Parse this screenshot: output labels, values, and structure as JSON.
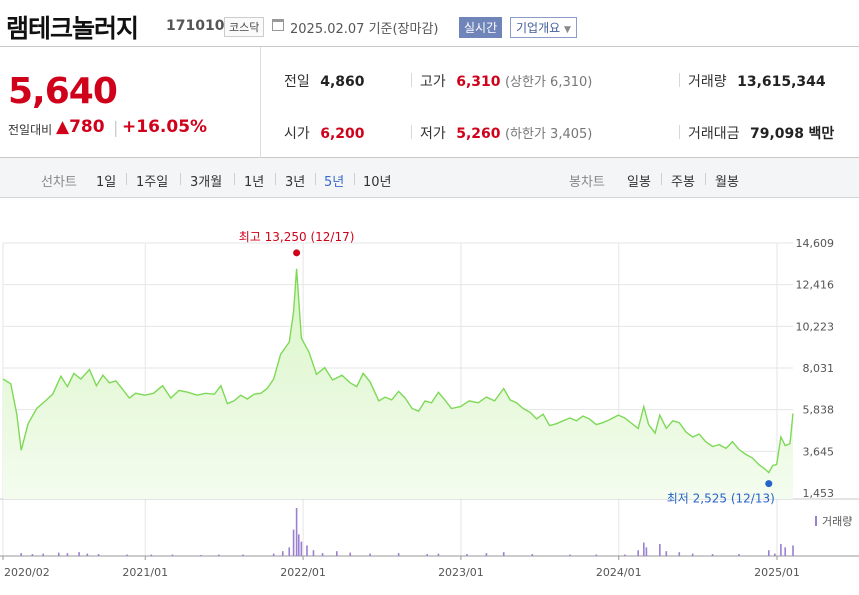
{
  "header": {
    "name": "램테크놀러지",
    "code": "171010",
    "market": "코스닥",
    "as_of": "2025.02.07 기준(장마감)",
    "realtime": "실시간",
    "company_info": "기업개요"
  },
  "quote": {
    "price": "5,640",
    "change_label": "전일대비",
    "change_abs": "▲780",
    "change_pct": "+16.05%",
    "prev_close": {
      "label": "전일",
      "value": "4,860"
    },
    "open": {
      "label": "시가",
      "value": "6,200"
    },
    "high": {
      "label": "고가",
      "value": "6,310",
      "sub": "(상한가 6,310)"
    },
    "low": {
      "label": "저가",
      "value": "5,260",
      "sub": "(하한가 3,405)"
    },
    "volume": {
      "label": "거래량",
      "value": "13,615,344"
    },
    "amount": {
      "label": "거래대금",
      "value": "79,098",
      "unit": "백만"
    }
  },
  "tabs": {
    "line_label": "선차트",
    "line": [
      {
        "label": "1일"
      },
      {
        "label": "1주일"
      },
      {
        "label": "3개월"
      },
      {
        "label": "1년"
      },
      {
        "label": "3년"
      },
      {
        "label": "5년",
        "active": true
      },
      {
        "label": "10년"
      }
    ],
    "candle_label": "봉차트",
    "candle": [
      {
        "label": "일봉"
      },
      {
        "label": "주봉"
      },
      {
        "label": "월봉"
      }
    ]
  },
  "chart_data": {
    "type": "area",
    "y_ticks": [
      "14,609",
      "12,416",
      "10,223",
      "8,031",
      "5,838",
      "3,645",
      "1,453"
    ],
    "ylim": [
      1453,
      14609
    ],
    "x_ticks": [
      "2020/02",
      "2021/01",
      "2022/01",
      "2023/01",
      "2024/01",
      "2025/01"
    ],
    "x_tick_dates": [
      "2020-02-07",
      "2021-01-01",
      "2022-01-01",
      "2023-01-01",
      "2024-01-01",
      "2025-01-01"
    ],
    "xlim": [
      "2020-02-07",
      "2025-02-07"
    ],
    "high_annotation": "최고 13,250 (12/17)",
    "low_annotation": "최저 2,525 (12/13)",
    "high_point": {
      "date": "2021-12-17",
      "value": 13250
    },
    "low_point": {
      "date": "2024-12-13",
      "value": 2525
    },
    "volume_label": "거래량",
    "colors": {
      "line": "#7ed957",
      "fill_top": "#d9f5c6",
      "fill_bottom": "#f4fcef",
      "volume": "#9b7fd1",
      "high": "#d0021b",
      "low": "#2864c8"
    },
    "series": [
      {
        "values": [
          [
            "2020-02-07",
            7450
          ],
          [
            "2020-02-25",
            7200
          ],
          [
            "2020-03-10",
            5600
          ],
          [
            "2020-03-20",
            3700
          ],
          [
            "2020-04-05",
            5100
          ],
          [
            "2020-04-25",
            5900
          ],
          [
            "2020-05-15",
            6300
          ],
          [
            "2020-06-01",
            6650
          ],
          [
            "2020-06-20",
            7600
          ],
          [
            "2020-07-05",
            7050
          ],
          [
            "2020-07-20",
            7750
          ],
          [
            "2020-08-05",
            7450
          ],
          [
            "2020-08-25",
            7950
          ],
          [
            "2020-09-10",
            7100
          ],
          [
            "2020-09-25",
            7650
          ],
          [
            "2020-10-10",
            7250
          ],
          [
            "2020-10-25",
            7350
          ],
          [
            "2020-11-10",
            6900
          ],
          [
            "2020-11-25",
            6450
          ],
          [
            "2020-12-10",
            6700
          ],
          [
            "2020-12-31",
            6600
          ],
          [
            "2021-01-20",
            6700
          ],
          [
            "2021-02-10",
            7100
          ],
          [
            "2021-03-01",
            6450
          ],
          [
            "2021-03-20",
            6850
          ],
          [
            "2021-04-10",
            6750
          ],
          [
            "2021-05-01",
            6600
          ],
          [
            "2021-05-20",
            6700
          ],
          [
            "2021-06-10",
            6650
          ],
          [
            "2021-06-25",
            7100
          ],
          [
            "2021-07-10",
            6150
          ],
          [
            "2021-07-25",
            6300
          ],
          [
            "2021-08-10",
            6600
          ],
          [
            "2021-08-25",
            6400
          ],
          [
            "2021-09-10",
            6650
          ],
          [
            "2021-09-25",
            6700
          ],
          [
            "2021-10-10",
            6950
          ],
          [
            "2021-10-25",
            7450
          ],
          [
            "2021-11-10",
            8750
          ],
          [
            "2021-11-30",
            9400
          ],
          [
            "2021-12-10",
            11000
          ],
          [
            "2021-12-17",
            13250
          ],
          [
            "2021-12-28",
            9600
          ],
          [
            "2022-01-15",
            8850
          ],
          [
            "2022-02-01",
            7700
          ],
          [
            "2022-02-20",
            8050
          ],
          [
            "2022-03-10",
            7400
          ],
          [
            "2022-04-01",
            7650
          ],
          [
            "2022-04-20",
            7250
          ],
          [
            "2022-05-05",
            7050
          ],
          [
            "2022-05-20",
            7750
          ],
          [
            "2022-06-05",
            7300
          ],
          [
            "2022-06-25",
            6300
          ],
          [
            "2022-07-10",
            6500
          ],
          [
            "2022-07-25",
            6350
          ],
          [
            "2022-08-10",
            6800
          ],
          [
            "2022-08-25",
            6450
          ],
          [
            "2022-09-10",
            5900
          ],
          [
            "2022-09-25",
            5750
          ],
          [
            "2022-10-10",
            6300
          ],
          [
            "2022-10-25",
            6200
          ],
          [
            "2022-11-10",
            6750
          ],
          [
            "2022-11-25",
            6350
          ],
          [
            "2022-12-10",
            5900
          ],
          [
            "2022-12-31",
            6000
          ],
          [
            "2023-01-20",
            6300
          ],
          [
            "2023-02-10",
            6200
          ],
          [
            "2023-03-01",
            6500
          ],
          [
            "2023-03-20",
            6300
          ],
          [
            "2023-04-10",
            6950
          ],
          [
            "2023-04-25",
            6350
          ],
          [
            "2023-05-10",
            6200
          ],
          [
            "2023-05-25",
            5900
          ],
          [
            "2023-06-10",
            5700
          ],
          [
            "2023-06-25",
            5350
          ],
          [
            "2023-07-10",
            5600
          ],
          [
            "2023-07-25",
            5000
          ],
          [
            "2023-08-10",
            5100
          ],
          [
            "2023-08-25",
            5250
          ],
          [
            "2023-09-10",
            5400
          ],
          [
            "2023-09-25",
            5250
          ],
          [
            "2023-10-10",
            5500
          ],
          [
            "2023-10-25",
            5350
          ],
          [
            "2023-11-10",
            5050
          ],
          [
            "2023-11-25",
            5150
          ],
          [
            "2023-12-10",
            5300
          ],
          [
            "2023-12-31",
            5550
          ],
          [
            "2024-01-15",
            5400
          ],
          [
            "2024-02-01",
            5100
          ],
          [
            "2024-02-15",
            4850
          ],
          [
            "2024-02-28",
            6000
          ],
          [
            "2024-03-10",
            5050
          ],
          [
            "2024-03-25",
            4600
          ],
          [
            "2024-04-05",
            5550
          ],
          [
            "2024-04-20",
            4850
          ],
          [
            "2024-05-05",
            5250
          ],
          [
            "2024-05-20",
            5150
          ],
          [
            "2024-06-05",
            4650
          ],
          [
            "2024-06-20",
            4400
          ],
          [
            "2024-07-05",
            4550
          ],
          [
            "2024-07-20",
            4150
          ],
          [
            "2024-08-05",
            3900
          ],
          [
            "2024-08-20",
            4000
          ],
          [
            "2024-09-05",
            3800
          ],
          [
            "2024-09-20",
            4150
          ],
          [
            "2024-10-05",
            3750
          ],
          [
            "2024-10-20",
            3500
          ],
          [
            "2024-11-05",
            3300
          ],
          [
            "2024-11-20",
            2950
          ],
          [
            "2024-12-05",
            2700
          ],
          [
            "2024-12-13",
            2525
          ],
          [
            "2024-12-22",
            2900
          ],
          [
            "2024-12-31",
            2950
          ],
          [
            "2025-01-10",
            4400
          ],
          [
            "2025-01-20",
            3950
          ],
          [
            "2025-01-31",
            4050
          ],
          [
            "2025-02-07",
            5640
          ]
        ]
      }
    ],
    "volume": [
      [
        "2020-03-20",
        0.06
      ],
      [
        "2020-04-15",
        0.04
      ],
      [
        "2020-05-10",
        0.05
      ],
      [
        "2020-06-15",
        0.07
      ],
      [
        "2020-07-05",
        0.06
      ],
      [
        "2020-08-01",
        0.08
      ],
      [
        "2020-08-20",
        0.05
      ],
      [
        "2020-09-15",
        0.04
      ],
      [
        "2020-11-20",
        0.03
      ],
      [
        "2021-01-15",
        0.03
      ],
      [
        "2021-03-05",
        0.03
      ],
      [
        "2021-05-10",
        0.02
      ],
      [
        "2021-06-20",
        0.03
      ],
      [
        "2021-08-15",
        0.03
      ],
      [
        "2021-10-25",
        0.05
      ],
      [
        "2021-11-15",
        0.1
      ],
      [
        "2021-11-30",
        0.18
      ],
      [
        "2021-12-10",
        0.55
      ],
      [
        "2021-12-17",
        1.0
      ],
      [
        "2021-12-22",
        0.45
      ],
      [
        "2021-12-28",
        0.3
      ],
      [
        "2022-01-10",
        0.22
      ],
      [
        "2022-01-25",
        0.12
      ],
      [
        "2022-02-15",
        0.06
      ],
      [
        "2022-03-20",
        0.1
      ],
      [
        "2022-04-20",
        0.07
      ],
      [
        "2022-06-05",
        0.05
      ],
      [
        "2022-08-10",
        0.06
      ],
      [
        "2022-10-15",
        0.04
      ],
      [
        "2022-11-10",
        0.05
      ],
      [
        "2023-01-15",
        0.04
      ],
      [
        "2023-03-01",
        0.06
      ],
      [
        "2023-04-10",
        0.08
      ],
      [
        "2023-06-15",
        0.04
      ],
      [
        "2023-09-10",
        0.03
      ],
      [
        "2023-11-10",
        0.03
      ],
      [
        "2024-01-15",
        0.03
      ],
      [
        "2024-02-15",
        0.12
      ],
      [
        "2024-02-28",
        0.28
      ],
      [
        "2024-03-05",
        0.18
      ],
      [
        "2024-04-05",
        0.25
      ],
      [
        "2024-04-20",
        0.1
      ],
      [
        "2024-05-20",
        0.08
      ],
      [
        "2024-06-20",
        0.05
      ],
      [
        "2024-08-05",
        0.04
      ],
      [
        "2024-10-05",
        0.04
      ],
      [
        "2024-12-13",
        0.12
      ],
      [
        "2024-12-27",
        0.05
      ],
      [
        "2025-01-10",
        0.25
      ],
      [
        "2025-01-20",
        0.18
      ],
      [
        "2025-02-07",
        0.22
      ]
    ]
  }
}
